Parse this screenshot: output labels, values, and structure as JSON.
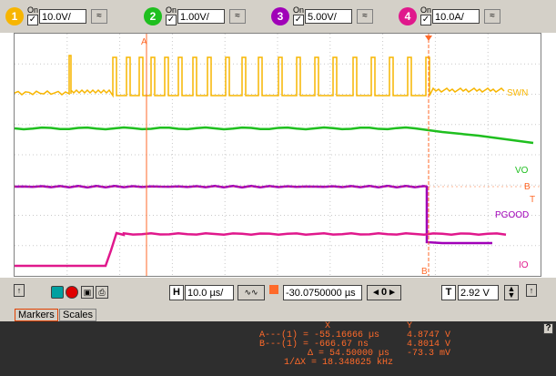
{
  "channels": [
    {
      "num": "1",
      "on_label": "On",
      "value": "10.0V/",
      "color": "#f7b500"
    },
    {
      "num": "2",
      "on_label": "On",
      "value": "1.00V/",
      "color": "#1fbf1f"
    },
    {
      "num": "3",
      "on_label": "On",
      "value": "5.00V/",
      "color": "#a000b8"
    },
    {
      "num": "4",
      "on_label": "On",
      "value": "10.0A/",
      "color": "#e0188c"
    }
  ],
  "traces": {
    "swn": "SWN",
    "vo": "VO",
    "pgood": "PGOOD",
    "io": "IO",
    "marker_a": "A",
    "marker_b": "B",
    "t_marker": "T",
    "by_marker": "B"
  },
  "controls": {
    "h_label": "H",
    "h_value": "10.0 µs/",
    "delay_value": "-30.0750000 µs",
    "t_label": "T",
    "trigger_value": "2.92 V",
    "nav_stop": "0"
  },
  "tabs": {
    "markers": "Markers",
    "scales": "Scales"
  },
  "measurements": {
    "col_x": "X",
    "col_y": "Y",
    "rowA": "A---(1) = -55.16666 µs",
    "rowA_y": "4.8747 V",
    "rowB": "B---(1) = -666.67 ns",
    "rowB_y": "4.8014 V",
    "rowD": "Δ = 54.50000 µs",
    "rowD_y": "-73.3 mV",
    "rowF": "1/ΔX = 18.348625 kHz",
    "help": "?"
  },
  "colors": {
    "ch1": "#f7b500",
    "ch2": "#1fbf1f",
    "ch3": "#a000b8",
    "ch4": "#e0188c",
    "marker": "#ff6a2a"
  }
}
